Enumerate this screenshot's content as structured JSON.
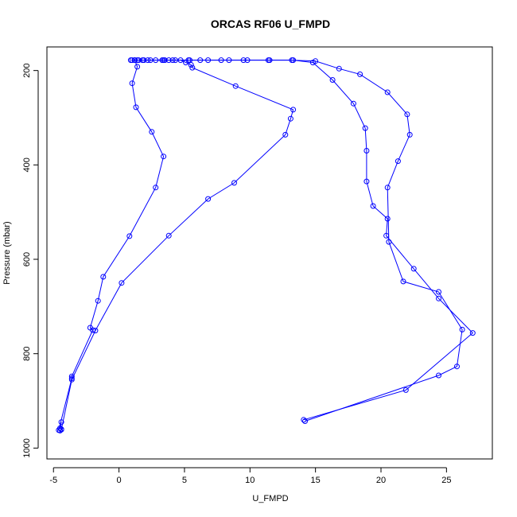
{
  "chart_data": {
    "type": "line",
    "title": "ORCAS RF06 U_FMPD",
    "xlabel": "U_FMPD",
    "ylabel": "Pressure (mbar)",
    "xlim": [
      -5.5,
      28.5
    ],
    "ylim": [
      1023,
      150
    ],
    "y_inverted": true,
    "xticks": [
      -5,
      0,
      5,
      10,
      15,
      20,
      25
    ],
    "yticks": [
      200,
      400,
      600,
      800,
      1000
    ],
    "grid": false,
    "legend": "none",
    "colors": {
      "series": "#0000ff",
      "axes": "#000000"
    },
    "series": [
      {
        "marker": "open-circle",
        "x": [
          -4.4,
          -4.5,
          -4.4,
          -4.6,
          -3.6,
          -3.6,
          -2.0,
          -2.2,
          -1.6,
          -1.2,
          0.8,
          2.8,
          3.4,
          2.5,
          1.3,
          1.0,
          1.4,
          1.2,
          0.9,
          1.4,
          1.8,
          2.2,
          2.8,
          3.5,
          4.3,
          5.4,
          6.2,
          7.8,
          9.8,
          11.5,
          13.2,
          15.0,
          16.8,
          18.4,
          20.5,
          22.0,
          22.2,
          21.3,
          20.5,
          20.6,
          21.7,
          24.4,
          26.2,
          25.8,
          24.4,
          14.2
        ],
        "y": [
          960,
          958,
          945,
          962,
          852,
          848,
          750,
          745,
          688,
          637,
          551,
          448,
          382,
          330,
          278,
          227,
          192,
          178,
          178,
          178,
          178,
          178,
          178,
          178,
          178,
          178,
          178,
          178,
          178,
          178,
          178,
          180,
          196,
          208,
          246,
          293,
          336,
          392,
          448,
          563,
          647,
          669,
          749,
          827,
          846,
          943
        ]
      },
      {
        "marker": "open-circle",
        "x": [
          -4.5,
          -4.4,
          -3.6,
          -1.8,
          0.2,
          3.8,
          6.8,
          8.8,
          12.7,
          13.1,
          13.3,
          8.9,
          5.6,
          5.5,
          5.1,
          4.7,
          4.1,
          3.4,
          3.3,
          2.4,
          1.9,
          1.5,
          1.2,
          1.0,
          3.8,
          5.3,
          6.8,
          8.4,
          9.5,
          11.4,
          13.3,
          14.8,
          16.3,
          17.9,
          18.8,
          18.9,
          18.9,
          19.4,
          20.5,
          20.4,
          22.5,
          24.4,
          27.0,
          21.9,
          14.1
        ],
        "y": [
          963,
          961,
          855,
          751,
          650,
          550,
          472,
          438,
          336,
          302,
          283,
          233,
          194,
          188,
          183,
          178,
          178,
          178,
          178,
          178,
          178,
          178,
          178,
          178,
          178,
          178,
          178,
          178,
          178,
          178,
          178,
          183,
          220,
          270,
          322,
          370,
          435,
          487,
          514,
          550,
          620,
          683,
          756,
          877,
          940
        ]
      }
    ]
  }
}
